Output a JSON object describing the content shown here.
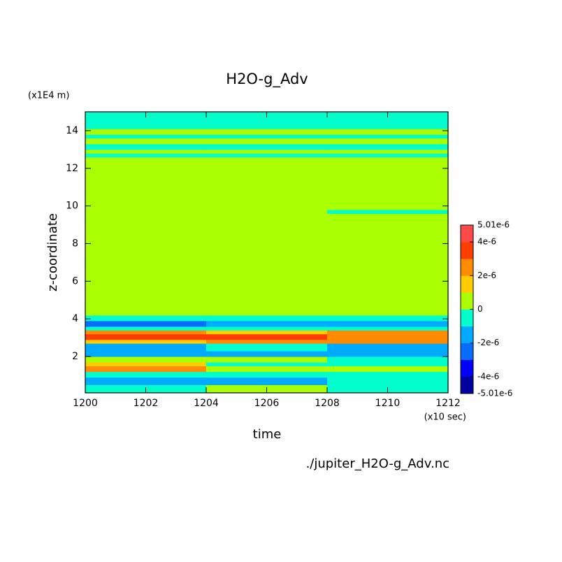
{
  "chart_data": {
    "type": "contour",
    "title": "H2O-g_Adv",
    "x_label": "time",
    "x_unit": "(x10 sec)",
    "y_label": "z-coordinate",
    "y_unit": "(x1E4 m)",
    "source": "./jupiter_H2O-g_Adv.nc",
    "xlim": [
      1200,
      1212
    ],
    "xticks": [
      1200,
      1202,
      1204,
      1206,
      1208,
      1210,
      1212
    ],
    "ylim": [
      0.07,
      15
    ],
    "yticks": [
      2,
      4,
      6,
      8,
      10,
      12,
      14
    ],
    "x_edges": [
      1200,
      1204,
      1208,
      1212
    ],
    "y_edges": [
      0.07,
      0.5,
      0.9,
      1.2,
      1.5,
      1.7,
      2.0,
      2.3,
      2.7,
      2.9,
      3.2,
      3.4,
      3.6,
      3.9,
      4.2,
      9.6,
      9.8,
      12.6,
      12.8,
      13.0,
      13.3,
      13.6,
      13.8,
      14.1,
      15
    ],
    "values": [
      [
        -5e-07,
        5e-07,
        -5e-07
      ],
      [
        -1.5e-06,
        -1.5e-06,
        -5e-07
      ],
      [
        -5e-07,
        -5e-07,
        -5e-07
      ],
      [
        2.5e-06,
        5e-07,
        5e-07
      ],
      [
        1.5e-06,
        -5e-07,
        -5e-07
      ],
      [
        5e-07,
        5e-07,
        -5e-07
      ],
      [
        -1.5e-06,
        -1.5e-06,
        -1.5e-06
      ],
      [
        -1.5e-06,
        -5e-07,
        -1.5e-06
      ],
      [
        1.5e-06,
        2.5e-06,
        2.5e-06
      ],
      [
        3.5e-06,
        3.5e-06,
        2.5e-06
      ],
      [
        2.5e-06,
        1.5e-06,
        2.5e-06
      ],
      [
        -5e-07,
        -5e-07,
        -5e-07
      ],
      [
        -2.5e-06,
        -1.5e-06,
        -1.5e-06
      ],
      [
        -5e-07,
        -5e-07,
        -5e-07
      ],
      [
        5e-07,
        5e-07,
        5e-07
      ],
      [
        5e-07,
        5e-07,
        -5e-07
      ],
      [
        5e-07,
        5e-07,
        5e-07
      ],
      [
        -5e-07,
        -5e-07,
        -5e-07
      ],
      [
        5e-07,
        5e-07,
        5e-07
      ],
      [
        -5e-07,
        -5e-07,
        -5e-07
      ],
      [
        5e-07,
        5e-07,
        5e-07
      ],
      [
        -5e-07,
        -5e-07,
        -5e-07
      ],
      [
        5e-07,
        5e-07,
        5e-07
      ],
      [
        -5e-07,
        -5e-07,
        -5e-07
      ]
    ],
    "levels": [
      -5.01e-06,
      -4e-06,
      -3e-06,
      -2e-06,
      -1e-06,
      0,
      1e-06,
      2e-06,
      3e-06,
      4e-06,
      5.01e-06
    ],
    "colors": [
      "#0000a0",
      "#0000ff",
      "#0a6cff",
      "#00aaff",
      "#00ffcc",
      "#aaff00",
      "#ffcc00",
      "#ff8c00",
      "#ff3c00",
      "#ff4a4a"
    ],
    "colorbar_ticks": [
      {
        "value": 5.01e-06,
        "label": "5.01e-6"
      },
      {
        "value": 4e-06,
        "label": "4e-6"
      },
      {
        "value": 2e-06,
        "label": "2e-6"
      },
      0,
      {
        "value": -2e-06,
        "label": "-2e-6"
      },
      {
        "value": -4e-06,
        "label": "-4e-6"
      },
      {
        "value": -5.01e-06,
        "label": "-5.01e-6"
      }
    ]
  }
}
